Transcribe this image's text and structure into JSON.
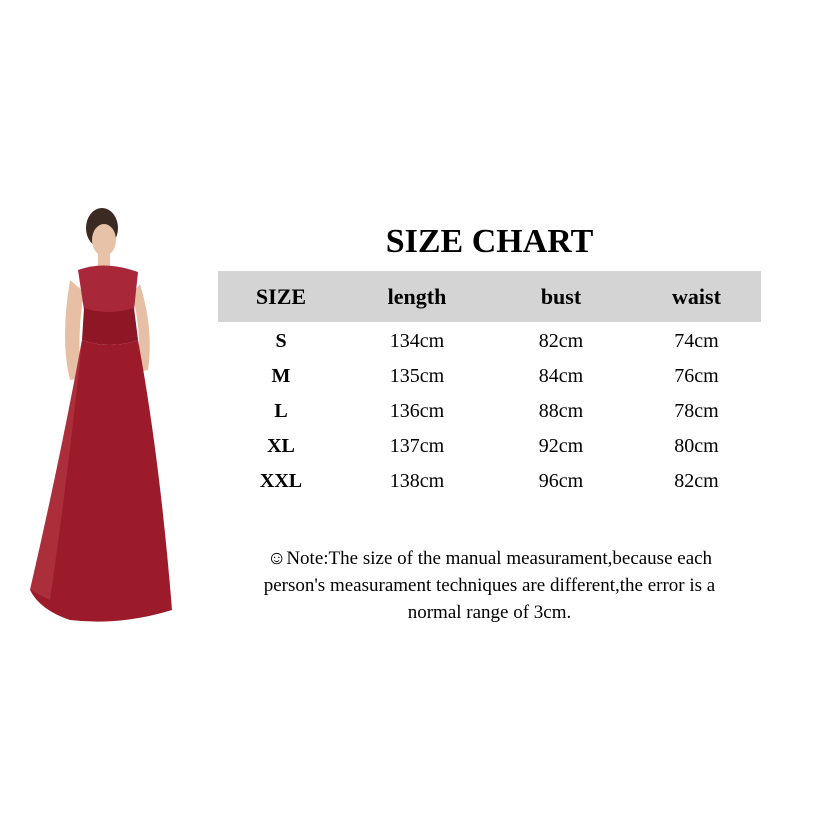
{
  "title": "SIZE CHART",
  "table": {
    "headers": [
      "SIZE",
      "length",
      "bust",
      "waist"
    ],
    "rows": [
      [
        "S",
        "134cm",
        "82cm",
        "74cm"
      ],
      [
        "M",
        "135cm",
        "84cm",
        "76cm"
      ],
      [
        "L",
        "136cm",
        "88cm",
        "78cm"
      ],
      [
        "XL",
        "137cm",
        "92cm",
        "80cm"
      ],
      [
        "XXL",
        "138cm",
        "96cm",
        "82cm"
      ]
    ]
  },
  "note": {
    "icon": "smiley-icon",
    "lines": [
      "☺Note:The size of the manual measurament,because each",
      "person's measurament techniques are different,the error is a",
      "normal range of 3cm."
    ]
  },
  "colors": {
    "header_bg": "#d4d4d4",
    "dress": "#9b1b2a"
  }
}
